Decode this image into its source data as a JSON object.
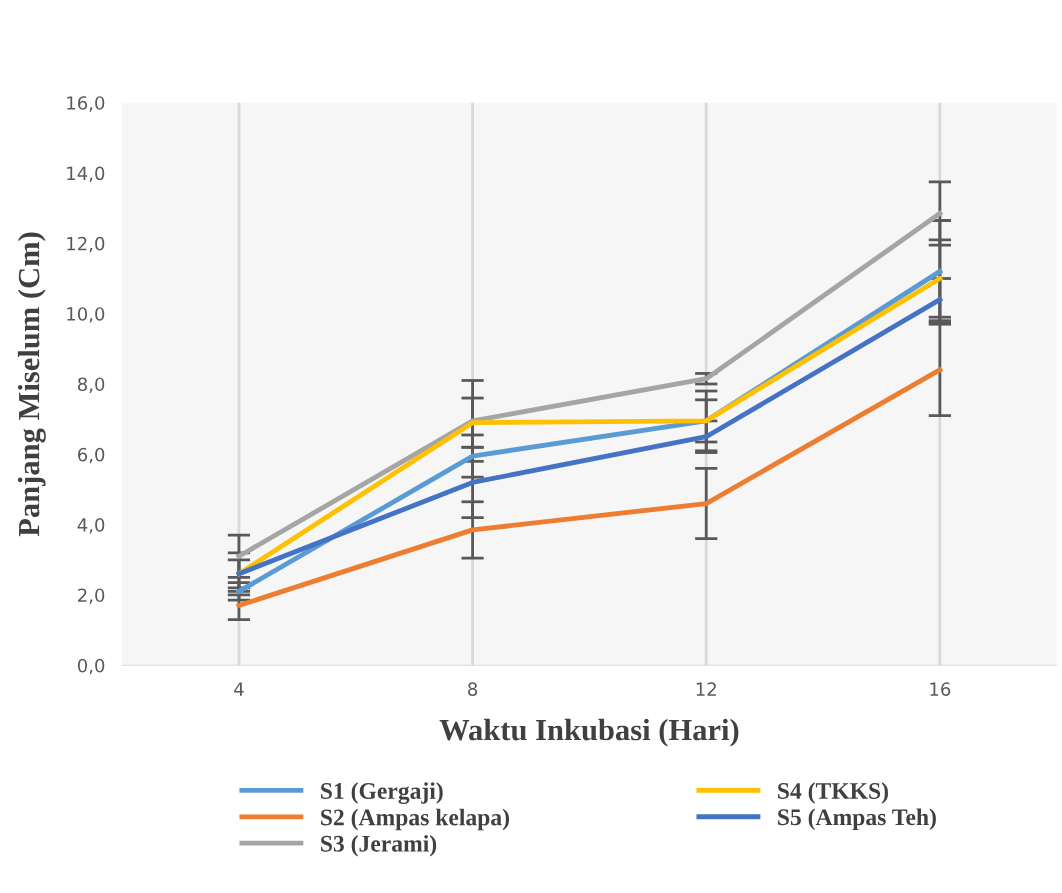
{
  "chart_data": {
    "type": "line",
    "xlabel": "Waktu Inkubasi (Hari)",
    "ylabel": "Panjang Miselum (Cm)",
    "categories": [
      "4",
      "8",
      "12",
      "16"
    ],
    "series": [
      {
        "name": "S1 (Gergaji)",
        "color": "#5b9bd5",
        "values": [
          2.1,
          5.95,
          6.95,
          11.2
        ],
        "errors": [
          0.25,
          0.6,
          0.85,
          1.45
        ]
      },
      {
        "name": "S2 (Ampas kelapa)",
        "color": "#ed7d31",
        "values": [
          1.7,
          3.85,
          4.6,
          8.4
        ],
        "errors": [
          0.4,
          0.8,
          1.0,
          1.3
        ]
      },
      {
        "name": "S3 (Jerami)",
        "color": "#a5a5a5",
        "values": [
          3.1,
          6.95,
          8.15,
          12.85
        ],
        "errors": [
          0.6,
          1.15,
          0.15,
          0.9
        ]
      },
      {
        "name": "S4 (TKKS)",
        "color": "#ffc000",
        "values": [
          2.6,
          6.9,
          6.95,
          11.0
        ],
        "errors": [
          0.4,
          0.7,
          0.6,
          1.1
        ]
      },
      {
        "name": "S5 (Ampas Teh)",
        "color": "#4472c4",
        "values": [
          2.6,
          5.2,
          6.5,
          10.4
        ],
        "errors": [
          0.6,
          1.0,
          0.45,
          0.6
        ]
      }
    ],
    "ylim": [
      0,
      16
    ],
    "yticks": [
      {
        "value": 0,
        "label": "0,0"
      },
      {
        "value": 2,
        "label": "2,0"
      },
      {
        "value": 4,
        "label": "4,0"
      },
      {
        "value": 6,
        "label": "6,0"
      },
      {
        "value": 8,
        "label": "8,0"
      },
      {
        "value": 10,
        "label": "10,0"
      },
      {
        "value": 12,
        "label": "12,0"
      },
      {
        "value": 14,
        "label": "14,0"
      },
      {
        "value": 16,
        "label": "16,0"
      }
    ],
    "grid": "x",
    "legend": "bottom",
    "marker": "none",
    "line_style": "solid"
  }
}
